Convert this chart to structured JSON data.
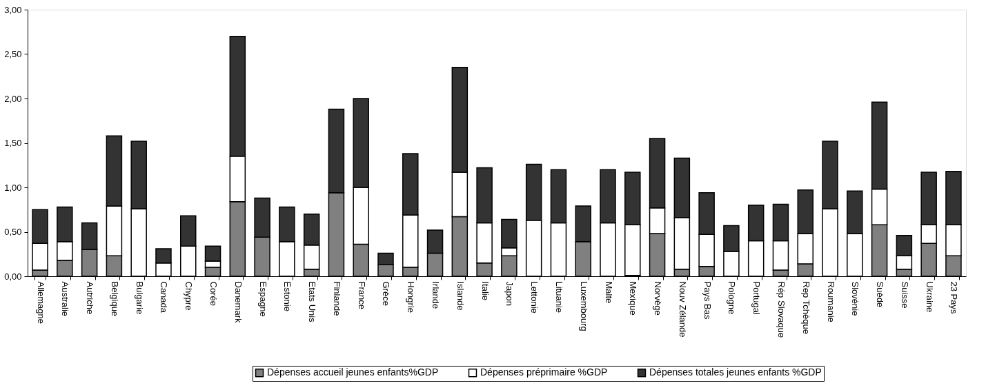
{
  "chart_data": {
    "type": "bar",
    "stacked": true,
    "categories": [
      "Allemagne",
      "Australie",
      "Autriche",
      "Belgique",
      "Bulgarie",
      "Canada",
      "Chypre",
      "Corée",
      "Danemark",
      "Espagne",
      "Estonie",
      "Etats Unis",
      "Finlande",
      "France",
      "Grèce",
      "Hongrie",
      "Irlande",
      "Islande",
      "Italie",
      "Japon",
      "Lettonie",
      "Lituanie",
      "Luxembourg",
      "Malte",
      "Mexique",
      "Norvège",
      "Nouv Zélande",
      "Pays Bas",
      "Pologne",
      "Portugal",
      "Rép Slovaque",
      "Rep Tchèque",
      "Roumanie",
      "Slovénie",
      "Suède",
      "Suisse",
      "Ukraine",
      "23 Pays"
    ],
    "series": [
      {
        "name": "Dépenses accueil jeunes enfants%GDP",
        "color": "#808080",
        "values": [
          0.07,
          0.18,
          0.3,
          0.23,
          0,
          0,
          0,
          0.1,
          0.84,
          0.44,
          0,
          0.08,
          0.94,
          0.36,
          0.13,
          0.1,
          0.26,
          0.67,
          0.15,
          0.23,
          0,
          0,
          0.39,
          0,
          0.01,
          0.48,
          0.08,
          0.11,
          0,
          0,
          0.07,
          0.14,
          0,
          0,
          0.58,
          0.08,
          0.37,
          0.23
        ]
      },
      {
        "name": "Dépenses préprimaire %GDP",
        "color": "#ffffff",
        "values": [
          0.3,
          0.21,
          0,
          0.56,
          0.76,
          0.15,
          0.34,
          0.07,
          0.51,
          0,
          0.39,
          0.27,
          0,
          0.64,
          0,
          0.59,
          0,
          0.5,
          0.45,
          0.09,
          0.63,
          0.6,
          0,
          0.6,
          0.57,
          0.29,
          0.58,
          0.36,
          0.28,
          0.4,
          0.33,
          0.34,
          0.76,
          0.48,
          0.4,
          0.15,
          0.21,
          0.35
        ]
      },
      {
        "name": "Dépenses totales jeunes enfants %GDP",
        "color": "#333333",
        "values": [
          0.38,
          0.39,
          0.3,
          0.79,
          0.76,
          0.16,
          0.34,
          0.17,
          1.35,
          0.44,
          0.39,
          0.35,
          0.94,
          1.0,
          0.13,
          0.69,
          0.26,
          1.18,
          0.62,
          0.32,
          0.63,
          0.6,
          0.4,
          0.6,
          0.59,
          0.78,
          0.67,
          0.47,
          0.29,
          0.4,
          0.41,
          0.49,
          0.76,
          0.48,
          0.98,
          0.23,
          0.59,
          0.6
        ]
      }
    ],
    "ylim": [
      0,
      3
    ],
    "yticks": [
      {
        "value": 0,
        "label": "0,00"
      },
      {
        "value": 0.5,
        "label": "0,50"
      },
      {
        "value": 1,
        "label": "1,00"
      },
      {
        "value": 1.5,
        "label": "1,50"
      },
      {
        "value": 2,
        "label": "2,00"
      },
      {
        "value": 2.5,
        "label": "2,50"
      },
      {
        "value": 3,
        "label": "3,00"
      }
    ],
    "grid": false,
    "legend": "bottom"
  }
}
